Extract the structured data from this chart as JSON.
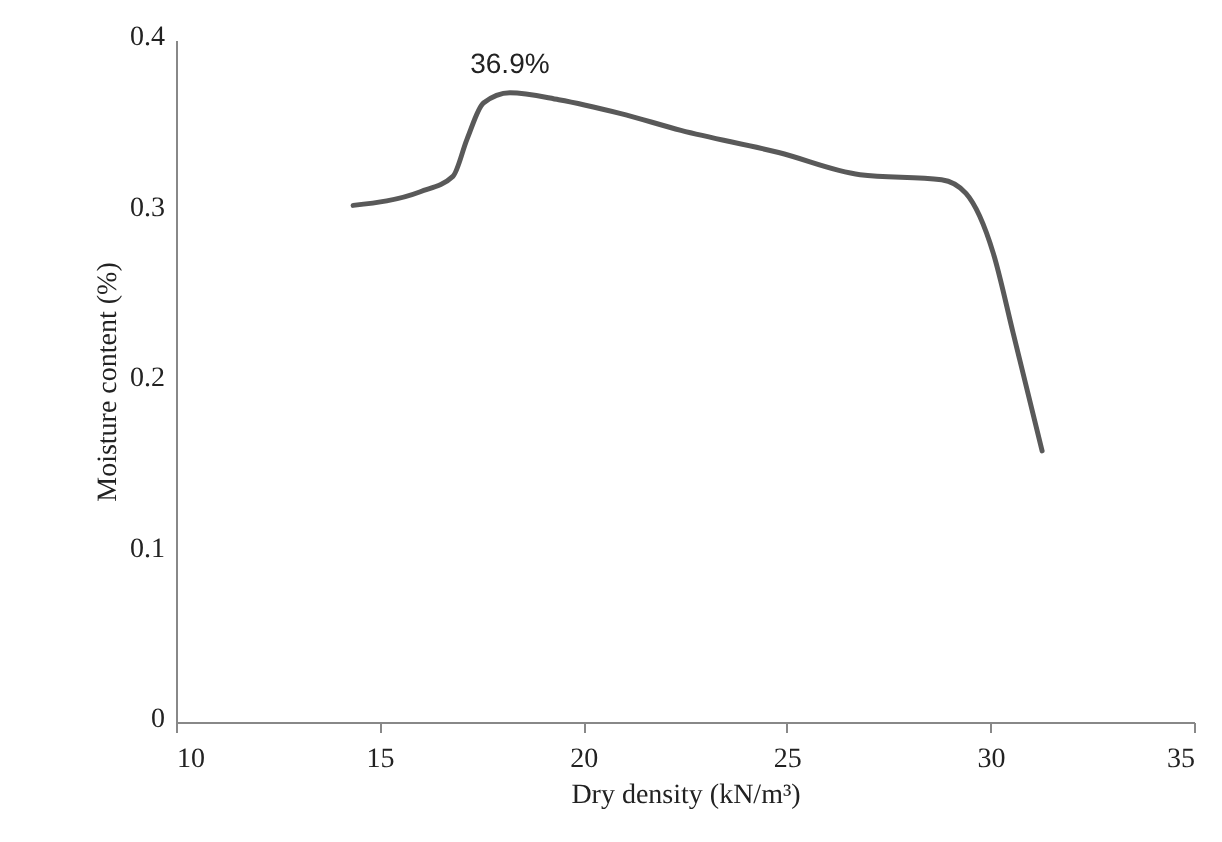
{
  "chart_data": {
    "type": "line",
    "xlabel": "Dry density (kN/m³)",
    "ylabel": "Moisture content (%)",
    "x": [
      14.35,
      16.0,
      16.8,
      17.15,
      17.55,
      18.2,
      19.4,
      20.9,
      22.4,
      24.8,
      26.8,
      28.8,
      29.4,
      30.07,
      30.56,
      31.27
    ],
    "series": [
      {
        "color": "#595959",
        "values": [
          0.303,
          0.311,
          0.32,
          0.342,
          0.363,
          0.369,
          0.365,
          0.357,
          0.347,
          0.334,
          0.321,
          0.318,
          0.31,
          0.275,
          0.228,
          0.159
        ]
      }
    ],
    "xlim": [
      10,
      35
    ],
    "xticks": [
      10,
      15,
      20,
      25,
      30,
      35
    ],
    "ylim": [
      0,
      0.4
    ],
    "yticks": [
      0,
      0.1,
      0.2,
      0.3,
      0.4
    ],
    "grid": false,
    "legend": false,
    "marker": "none",
    "line_style": "solid",
    "annotations": [
      {
        "text": "36.9%",
        "x": 18.2,
        "y": 0.369
      }
    ]
  }
}
